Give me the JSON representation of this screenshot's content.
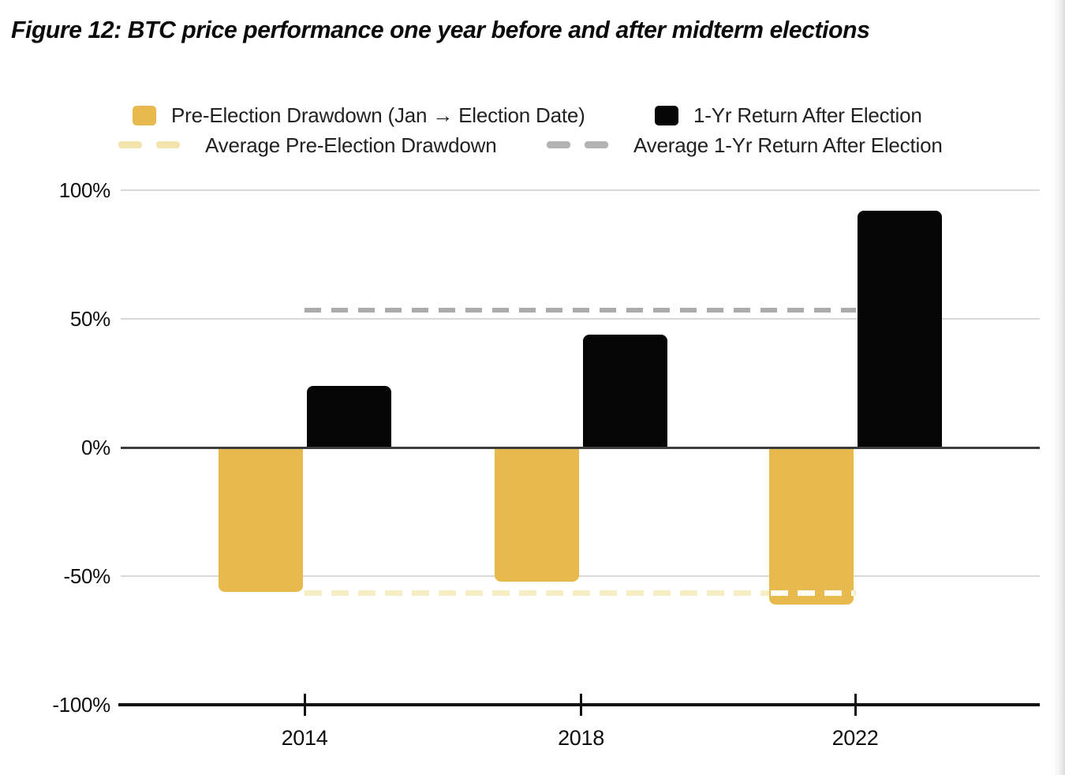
{
  "figure": {
    "title": "Figure 12: BTC price performance one year before and after midterm elections"
  },
  "legend": {
    "series1_label": "Pre-Election Drawdown (Jan → Election Date)",
    "series2_label": "1-Yr Return After Election",
    "avg1_label": "Average Pre-Election Drawdown",
    "avg2_label": "Average 1-Yr Return After Election"
  },
  "colors": {
    "gold_bar": "#e8b94c",
    "black_bar": "#050505",
    "avg_drawdown_line": "#f7eec6",
    "avg_drawdown_legend": "#f3e4ac",
    "avg_return_line": "#ababab",
    "avg_return_legend": "#b3b3b3",
    "gridline": "#d9d9d9",
    "zero_line": "#3c3c3c",
    "axis": "#101010",
    "white_dash_on_bar": "#fffdf3"
  },
  "chart_data": {
    "type": "bar",
    "categories": [
      "2014",
      "2018",
      "2022"
    ],
    "series": [
      {
        "name": "Pre-Election Drawdown (Jan → Election Date)",
        "color": "#e8b94c",
        "values": [
          -56,
          -52,
          -61
        ]
      },
      {
        "name": "1-Yr Return After Election",
        "color": "#050505",
        "values": [
          24,
          44,
          92
        ]
      }
    ],
    "average_lines": [
      {
        "name": "Average Pre-Election Drawdown",
        "value": -56.5,
        "color": "#f7eec6",
        "style": "dashed"
      },
      {
        "name": "Average 1-Yr Return After Election",
        "value": 53.5,
        "color": "#ababab",
        "style": "dashed"
      }
    ],
    "ylim": [
      -100,
      100
    ],
    "ytick_values": [
      100,
      50,
      0,
      -50,
      -100
    ],
    "yticks": [
      "100%",
      "50%",
      "0%",
      "-50%",
      "-100%"
    ],
    "grid": true,
    "legend_position": "top"
  }
}
